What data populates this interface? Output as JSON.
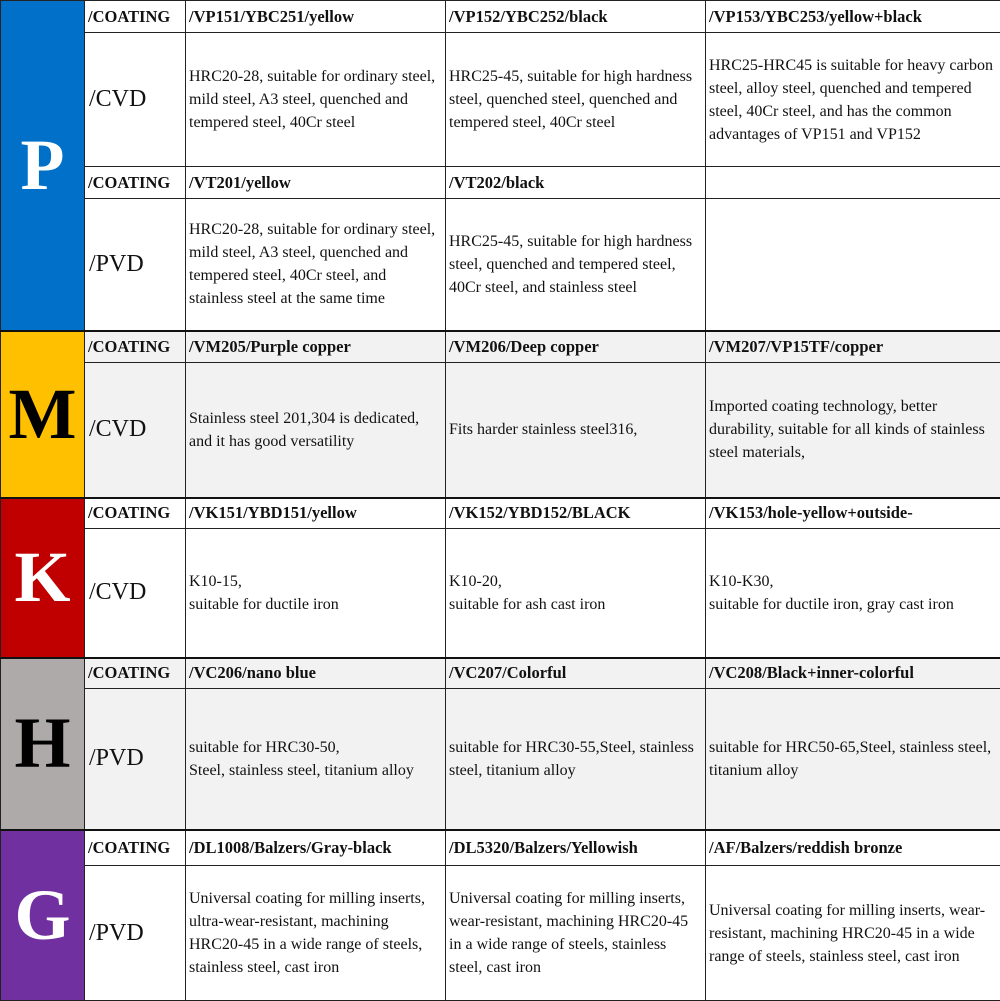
{
  "colors": {
    "P": "#0070c8",
    "M": "#ffc000",
    "K": "#c00000",
    "H": "#aeaaaa",
    "G": "#7030a0"
  },
  "groups": [
    {
      "letter": "P",
      "letter_color": "#ffffff",
      "rows": [
        {
          "header": "/COATING",
          "type": "/CVD",
          "cols": [
            {
              "title": "/VP151/YBC251/yellow",
              "desc": "HRC20-28, suitable for ordinary steel, mild steel, A3 steel, quenched and tempered steel, 40Cr steel"
            },
            {
              "title": "/VP152/YBC252/black",
              "desc": "HRC25-45, suitable for high hardness steel, quenched steel, quenched and tempered steel, 40Cr steel"
            },
            {
              "title": "/VP153/YBC253/yellow+black",
              "desc": "HRC25-HRC45 is suitable for heavy carbon steel, alloy steel, quenched and tempered steel, 40Cr steel, and has the common advantages of VP151 and VP152"
            }
          ]
        },
        {
          "header": "/COATING",
          "type": "/PVD",
          "cols": [
            {
              "title": "/VT201/yellow",
              "desc": "HRC20-28, suitable for ordinary steel, mild steel, A3 steel, quenched and tempered steel, 40Cr steel, and stainless steel at the same time"
            },
            {
              "title": "/VT202/black",
              "desc": "HRC25-45, suitable for high hardness steel, quenched and tempered steel, 40Cr steel, and stainless steel"
            },
            {
              "title": "",
              "desc": ""
            }
          ]
        }
      ]
    },
    {
      "letter": "M",
      "letter_color": "#000000",
      "rows": [
        {
          "header": "/COATING",
          "type": "/CVD",
          "cols": [
            {
              "title": "/VM205/Purple copper",
              "desc": "Stainless steel 201,304 is dedicated, and it has good versatility"
            },
            {
              "title": "/VM206/Deep copper",
              "desc": "Fits harder stainless steel316,"
            },
            {
              "title": "/VM207/VP15TF/copper",
              "desc": "Imported coating technology, better durability, suitable for all kinds of stainless steel materials,"
            }
          ]
        }
      ]
    },
    {
      "letter": "K",
      "letter_color": "#ffffff",
      "rows": [
        {
          "header": "/COATING",
          "type": "/CVD",
          "cols": [
            {
              "title": "/VK151/YBD151/yellow",
              "desc": "K10-15,\nsuitable for ductile iron"
            },
            {
              "title": "/VK152/YBD152/BLACK",
              "desc": "K10-20,\nsuitable for ash cast iron"
            },
            {
              "title": "/VK153/hole-yellow+outside-",
              "desc": "K10-K30,\nsuitable for ductile iron, gray cast iron"
            }
          ]
        }
      ]
    },
    {
      "letter": "H",
      "letter_color": "#000000",
      "rows": [
        {
          "header": "/COATING",
          "type": "/PVD",
          "cols": [
            {
              "title": "/VC206/nano blue",
              "desc": "suitable for HRC30-50,\nSteel, stainless steel, titanium alloy"
            },
            {
              "title": "/VC207/Colorful",
              "desc": "suitable for HRC30-55,Steel, stainless steel, titanium alloy"
            },
            {
              "title": "/VC208/Black+inner-colorful",
              "desc": "suitable for HRC50-65,Steel, stainless steel, titanium alloy"
            }
          ]
        }
      ]
    },
    {
      "letter": "G",
      "letter_color": "#ffffff",
      "rows": [
        {
          "header": "/COATING",
          "type": "/PVD",
          "cols": [
            {
              "title": "/DL1008/Balzers/Gray-black",
              "desc": "Universal coating for milling inserts, ultra-wear-resistant, machining HRC20-45 in a wide range of steels, stainless steel, cast iron"
            },
            {
              "title": "/DL5320/Balzers/Yellowish",
              "desc": "Universal coating for milling inserts, wear-resistant, machining HRC20-45 in a wide range of steels, stainless steel, cast iron"
            },
            {
              "title": "/AF/Balzers/reddish bronze",
              "desc": "Universal coating for milling inserts, wear-resistant, machining HRC20-45 in a wide range of steels, stainless steel, cast iron"
            }
          ]
        }
      ]
    }
  ]
}
